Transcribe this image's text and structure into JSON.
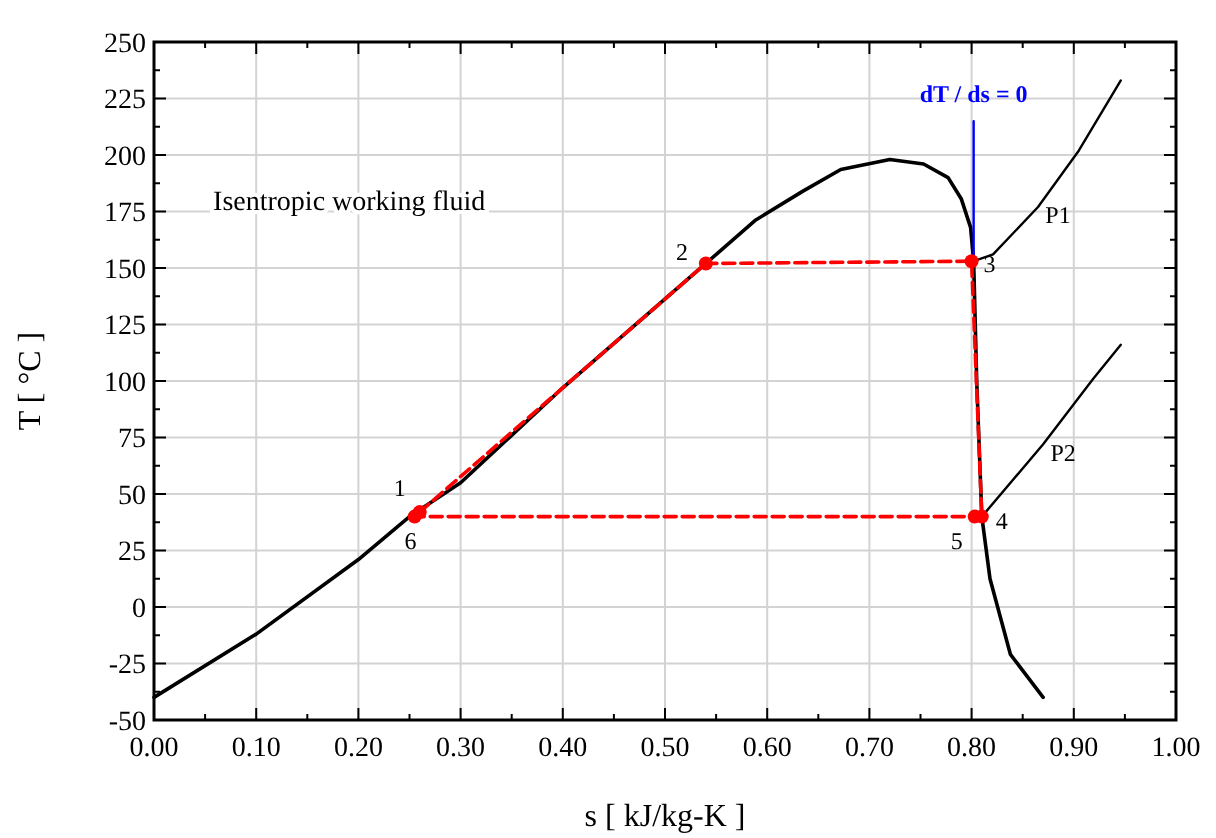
{
  "chart_data": {
    "type": "line",
    "xlabel": "s [ kJ/kg-K ]",
    "ylabel": "T [ °C ]",
    "xlim": [
      0,
      1
    ],
    "ylim": [
      -50,
      250
    ],
    "xticks": [
      {
        "value": 0,
        "label": "0.00"
      },
      {
        "value": 0.05,
        "label": null
      },
      {
        "value": 0.1,
        "label": "0.10"
      },
      {
        "value": 0.15,
        "label": null
      },
      {
        "value": 0.2,
        "label": "0.20"
      },
      {
        "value": 0.25,
        "label": null
      },
      {
        "value": 0.3,
        "label": "0.30"
      },
      {
        "value": 0.35,
        "label": null
      },
      {
        "value": 0.4,
        "label": "0.40"
      },
      {
        "value": 0.45,
        "label": null
      },
      {
        "value": 0.5,
        "label": "0.50"
      },
      {
        "value": 0.55,
        "label": null
      },
      {
        "value": 0.6,
        "label": "0.60"
      },
      {
        "value": 0.65,
        "label": null
      },
      {
        "value": 0.7,
        "label": "0.70"
      },
      {
        "value": 0.75,
        "label": null
      },
      {
        "value": 0.8,
        "label": "0.80"
      },
      {
        "value": 0.85,
        "label": null
      },
      {
        "value": 0.9,
        "label": "0.90"
      },
      {
        "value": 0.95,
        "label": null
      },
      {
        "value": 1,
        "label": "1.00"
      }
    ],
    "yticks": [
      -50,
      {
        "value": -37.5,
        "label": null
      },
      -25,
      {
        "value": -12.5,
        "label": null
      },
      0,
      {
        "value": 12.5,
        "label": null
      },
      25,
      {
        "value": 37.5,
        "label": null
      },
      50,
      {
        "value": 62.5,
        "label": null
      },
      75,
      {
        "value": 87.5,
        "label": null
      },
      100,
      {
        "value": 112.5,
        "label": null
      },
      125,
      {
        "value": 137.5,
        "label": null
      },
      150,
      {
        "value": 162.5,
        "label": null
      },
      175,
      {
        "value": 187.5,
        "label": null
      },
      200,
      {
        "value": 212.5,
        "label": null
      },
      225,
      {
        "value": 237.5,
        "label": null
      },
      250
    ],
    "grid": true,
    "series": [
      {
        "color": "#000000",
        "x": [
          0,
          0.1,
          0.2,
          0.25,
          0.3,
          0.4,
          0.54,
          0.588,
          0.635,
          0.672,
          0.72,
          0.753,
          0.777,
          0.79,
          0.799,
          0.802,
          0.805,
          0.81,
          0.818,
          0.838,
          0.87
        ],
        "values": [
          -40,
          -12,
          21,
          40,
          55,
          97,
          152,
          171,
          184,
          193.6,
          198,
          196,
          190,
          180.5,
          168,
          153,
          100,
          40,
          12.5,
          -21,
          -40
        ],
        "marker": "none",
        "line_style": "solid"
      },
      {
        "color": "#000000",
        "x": [
          0.802,
          0.821,
          0.865,
          0.905,
          0.946
        ],
        "values": [
          153,
          156,
          177,
          202,
          233
        ],
        "marker": "none",
        "line_style": "solid"
      },
      {
        "color": "#000000",
        "x": [
          0.81,
          0.87,
          0.919,
          0.946
        ],
        "values": [
          40,
          72,
          101,
          116
        ],
        "marker": "none",
        "line_style": "solid"
      },
      {
        "color": "#0000ff",
        "x": [
          0.802,
          0.802
        ],
        "values": [
          153,
          215
        ],
        "marker": "none",
        "line_style": "solid"
      },
      {
        "color": "#ff0000",
        "x": [
          0.26,
          0.54,
          0.8,
          0.81,
          0.803,
          0.255
        ],
        "values": [
          42,
          152,
          153,
          40,
          40,
          40
        ],
        "marker": "circle",
        "line_style": "dashed"
      }
    ],
    "annotations": [
      "Isentropic working fluid",
      {
        "text": "1",
        "x": 0.26,
        "y": 42
      },
      {
        "text": "2",
        "x": 0.54,
        "y": 152
      },
      {
        "text": "3",
        "x": 0.8,
        "y": 153
      },
      {
        "text": "4",
        "x": 0.81,
        "y": 40
      },
      {
        "text": "5",
        "x": 0.803,
        "y": 40
      },
      {
        "text": "6",
        "x": 0.255,
        "y": 40
      },
      {
        "text": "P1",
        "x": 0.865,
        "y": 177
      },
      {
        "text": "P2",
        "x": 0.87,
        "y": 72
      },
      {
        "text": "dT / ds = 0",
        "x": 0.802,
        "y": 215
      }
    ]
  }
}
